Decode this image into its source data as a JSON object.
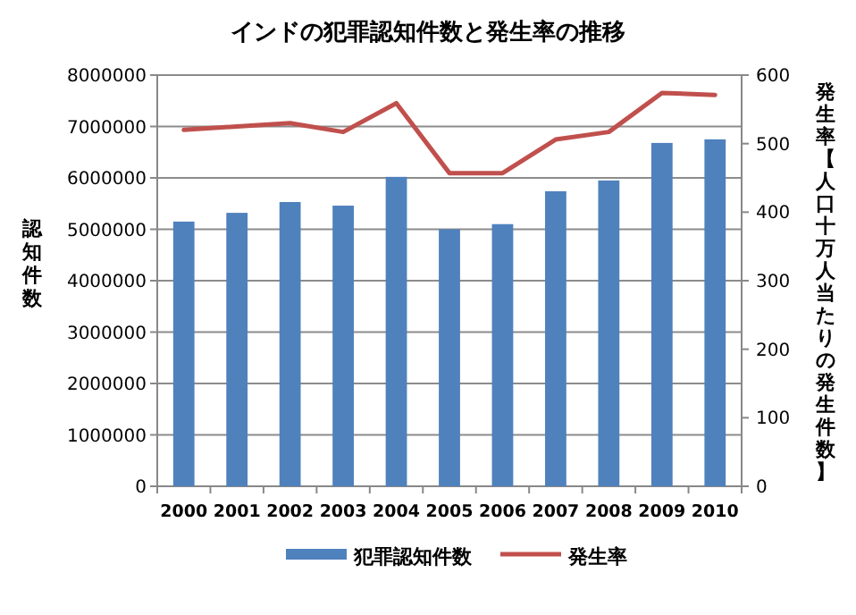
{
  "chart_data": {
    "type": "bar",
    "title": "インドの犯罪認知件数と発生率の推移",
    "ylabel": "認知件数",
    "y2label": "発生率【人口十万人当たりの発生件数】",
    "categories": [
      "2000",
      "2001",
      "2002",
      "2003",
      "2004",
      "2005",
      "2006",
      "2007",
      "2008",
      "2009",
      "2010"
    ],
    "series": [
      {
        "name": "犯罪認知件数",
        "color": "#4f81bd",
        "values": [
          5150000,
          5320000,
          5530000,
          5460000,
          6020000,
          5000000,
          5100000,
          5740000,
          5950000,
          6680000,
          6750000
        ]
      },
      {
        "name": "発生率",
        "type": "line",
        "axis": "y2",
        "color": "#c0504d",
        "values": [
          520,
          525,
          530,
          517,
          559,
          457,
          457,
          506,
          517,
          574,
          571
        ]
      }
    ],
    "ylim": [
      0,
      8000000
    ],
    "yticks": [
      0,
      1000000,
      2000000,
      3000000,
      4000000,
      5000000,
      6000000,
      7000000,
      8000000
    ],
    "y2lim": [
      0,
      600
    ],
    "y2ticks": [
      0,
      100,
      200,
      300,
      400,
      500,
      600
    ],
    "grid": "y",
    "legend": "bottom"
  }
}
